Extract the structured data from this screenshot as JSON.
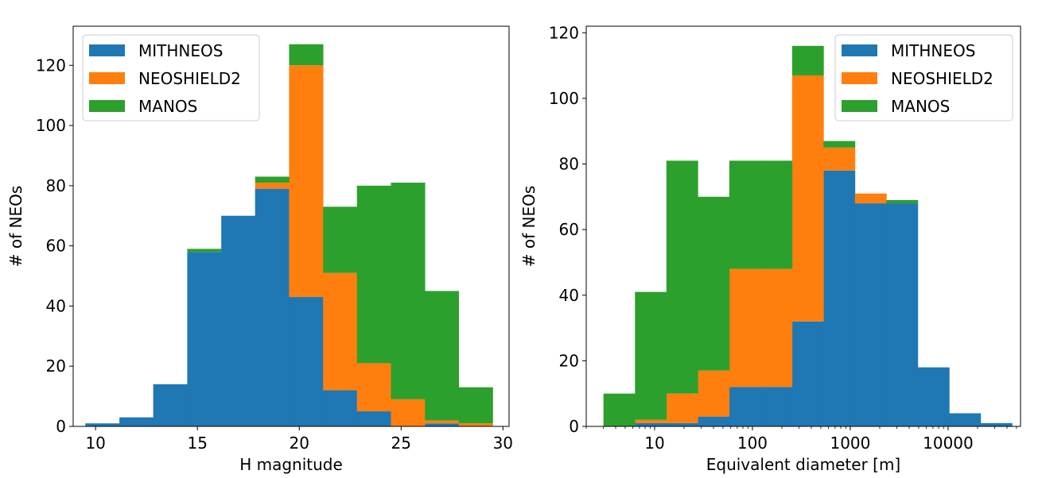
{
  "colors": {
    "MITHNEOS": "#1f77b4",
    "NEOSHIELD2": "#ff7f0e",
    "MANOS": "#2ca02c"
  },
  "chart_data": [
    {
      "type": "bar",
      "stacked": true,
      "xlabel": "H magnitude",
      "ylabel": "# of NEOs",
      "xlim": [
        8.9,
        30.3
      ],
      "ylim": [
        0,
        133
      ],
      "xscale": "linear",
      "xticks": [
        10,
        15,
        20,
        25,
        30
      ],
      "xtick_labels": [
        "10",
        "15",
        "20",
        "25",
        "30"
      ],
      "yticks": [
        0,
        20,
        40,
        60,
        80,
        100,
        120
      ],
      "ytick_labels": [
        "0",
        "20",
        "40",
        "60",
        "80",
        "100",
        "120"
      ],
      "legend_position": "top-left",
      "bin_edges": [
        9.5,
        11.17,
        12.83,
        14.5,
        16.17,
        17.83,
        19.5,
        21.17,
        22.83,
        24.5,
        26.17,
        27.83,
        29.5
      ],
      "series": [
        {
          "name": "MITHNEOS",
          "values": [
            1,
            3,
            14,
            58,
            70,
            79,
            43,
            12,
            5,
            0,
            1,
            0
          ]
        },
        {
          "name": "NEOSHIELD2",
          "values": [
            0,
            0,
            0,
            0,
            0,
            2,
            77,
            39,
            16,
            9,
            1,
            1
          ]
        },
        {
          "name": "MANOS",
          "values": [
            0,
            0,
            0,
            1,
            0,
            2,
            7,
            22,
            59,
            72,
            43,
            12
          ]
        }
      ]
    },
    {
      "type": "bar",
      "stacked": true,
      "xlabel": "Equivalent diameter [m]",
      "ylabel": "# of NEOs",
      "xlim": [
        2.0,
        55000
      ],
      "ylim": [
        0,
        122
      ],
      "xscale": "log",
      "xticks": [
        10,
        100,
        1000,
        10000
      ],
      "xtick_labels": [
        "10",
        "100",
        "1000",
        "10000"
      ],
      "yticks": [
        0,
        20,
        40,
        60,
        80,
        100,
        120
      ],
      "ytick_labels": [
        "0",
        "20",
        "40",
        "60",
        "80",
        "100",
        "120"
      ],
      "legend_position": "top-right",
      "bin_edges": [
        3.0,
        6.3,
        13.2,
        27.7,
        58.0,
        121.5,
        254.6,
        533.4,
        1117.6,
        2341.6,
        4906.0,
        10279.0,
        21536.0,
        45122.0
      ],
      "series": [
        {
          "name": "MITHNEOS",
          "values": [
            0,
            1,
            1,
            3,
            12,
            12,
            32,
            78,
            68,
            68,
            18,
            4,
            1
          ]
        },
        {
          "name": "NEOSHIELD2",
          "values": [
            0,
            1,
            9,
            14,
            36,
            36,
            75,
            7,
            3,
            0,
            0,
            0,
            0
          ]
        },
        {
          "name": "MANOS",
          "values": [
            10,
            39,
            71,
            53,
            33,
            33,
            9,
            2,
            0,
            1,
            0,
            0,
            0
          ]
        }
      ]
    }
  ]
}
